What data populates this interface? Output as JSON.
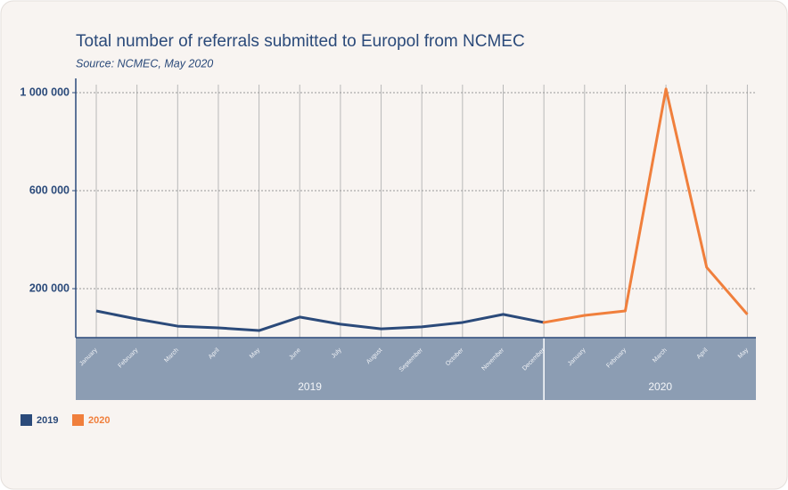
{
  "chart_data": {
    "type": "line",
    "title": "Total number of referrals submitted to Europol from NCMEC",
    "subtitle": "Source: NCMEC, May 2020",
    "groups": [
      {
        "label": "2019",
        "categories": [
          "January",
          "February",
          "March",
          "April",
          "May",
          "June",
          "July",
          "August",
          "September",
          "October",
          "November",
          "December"
        ]
      },
      {
        "label": "2020",
        "categories": [
          "January",
          "February",
          "March",
          "April",
          "May"
        ]
      }
    ],
    "series": [
      {
        "name": "2019",
        "color": "#2b4a7a",
        "values": [
          109000,
          76000,
          47000,
          40000,
          29000,
          84000,
          55000,
          36000,
          44000,
          62000,
          95000,
          62000,
          null,
          null,
          null,
          null,
          null
        ]
      },
      {
        "name": "2020",
        "color": "#f07f3c",
        "values": [
          null,
          null,
          null,
          null,
          null,
          null,
          null,
          null,
          null,
          null,
          null,
          null,
          91000,
          109000,
          1015000,
          287000,
          95000
        ]
      }
    ],
    "ylim": [
      0,
      1000000
    ],
    "yticks": [
      {
        "value": 200000,
        "label": "200 000"
      },
      {
        "value": 600000,
        "label": "600 000"
      },
      {
        "value": 1000000,
        "label": "1 000 000"
      }
    ],
    "grid": true
  }
}
